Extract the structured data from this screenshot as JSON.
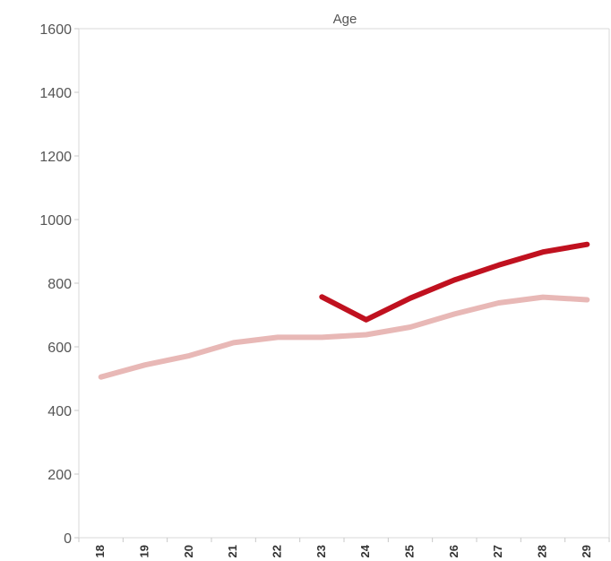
{
  "chart_data": {
    "type": "line",
    "title": "Age",
    "xlabel": "",
    "ylabel": "",
    "categories": [
      "18",
      "19",
      "20",
      "21",
      "22",
      "23",
      "24",
      "25",
      "26",
      "27",
      "28",
      "29"
    ],
    "ylim": [
      0,
      1600
    ],
    "yticks": [
      0,
      200,
      400,
      600,
      800,
      1000,
      1200,
      1400,
      1600
    ],
    "grid": false,
    "series": [
      {
        "color": "#e8b8b6",
        "values": [
          505,
          543,
          572,
          613,
          630,
          630,
          638,
          662,
          703,
          738,
          756,
          748
        ]
      },
      {
        "color": "#c0111f",
        "values": [
          null,
          null,
          null,
          null,
          null,
          757,
          685,
          753,
          810,
          857,
          898,
          922
        ]
      }
    ]
  }
}
